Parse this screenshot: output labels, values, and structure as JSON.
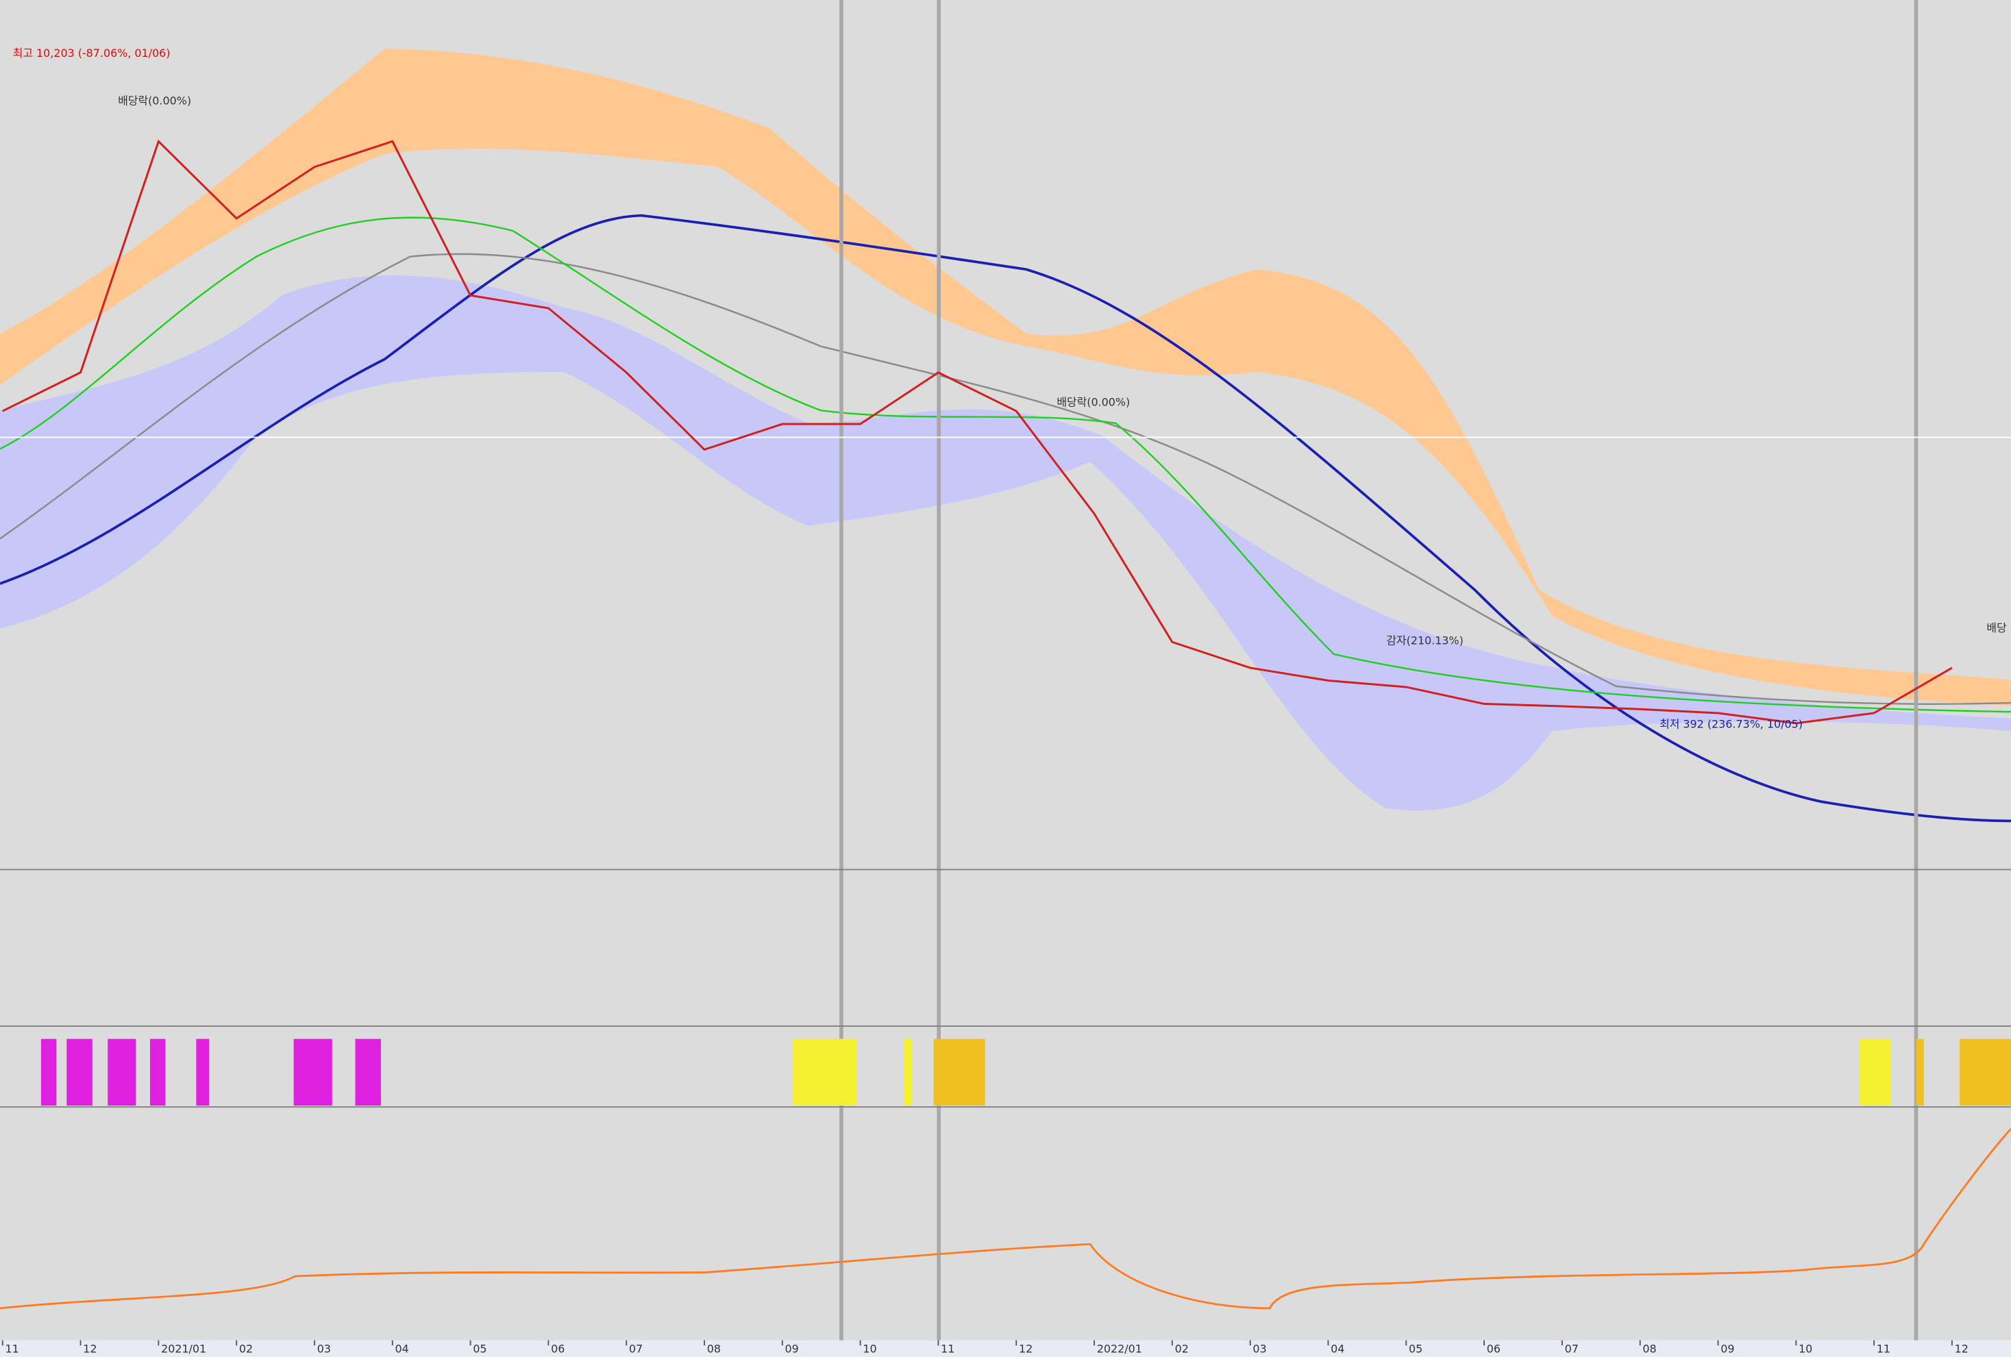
{
  "chart_data": {
    "type": "line",
    "categories": [
      "11",
      "12",
      "2021/01",
      "02",
      "03",
      "04",
      "05",
      "06",
      "07",
      "08",
      "09",
      "10",
      "11",
      "12",
      "2022/01",
      "02",
      "03",
      "04",
      "05",
      "06",
      "07",
      "08",
      "09",
      "10",
      "11",
      "12"
    ],
    "values": [
      1800,
      2171,
      6673,
      4589,
      5892,
      6673,
      3157,
      2967,
      2171,
      1493,
      1690,
      1690,
      2171,
      1800,
      1093,
      586,
      517,
      486,
      471,
      434,
      429,
      423,
      415,
      395,
      415,
      517
    ],
    "color": "#d02020",
    "log_scale": true,
    "ylim": [
      194,
      13260
    ],
    "annotations": [
      "최고 10,203 (-87.06%, 01/06)",
      "배당락(0.00%)",
      "배당락(0.00%)",
      "감자(210.13%)",
      "최저 392 (236.73%, 10/05)",
      "배당"
    ]
  }
}
